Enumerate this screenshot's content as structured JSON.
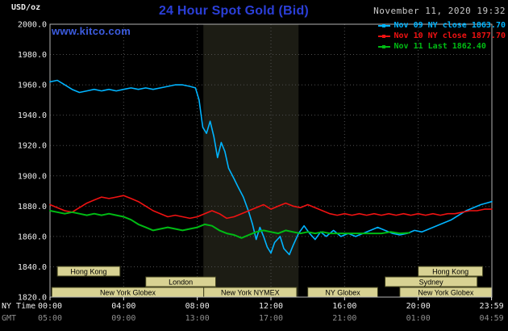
{
  "header": {
    "units_label": "USD/oz",
    "title": "24 Hour Spot Gold (Bid)",
    "datetime": "November 11, 2020 19:32",
    "watermark": "www.kitco.com"
  },
  "colors": {
    "title": "#2b3fd8",
    "watermark": "#3c5ce0",
    "datetime": "#c8c8c8",
    "background": "#000000",
    "plot_border": "#b5b5b5",
    "grid": "#4f4f4f",
    "band": "#1c1c14",
    "session_fill": "#d8d293",
    "session_stroke": "#44441f",
    "session_text": "#000000",
    "tick_primary": "#ededed",
    "tick_secondary": "#8f8f8f"
  },
  "legend": [
    {
      "id": "nov09",
      "label": "Nov 09 NY close 1863.70",
      "color": "#00b4ff"
    },
    {
      "id": "nov10",
      "label": "Nov 10 NY close 1877.70",
      "color": "#f01212"
    },
    {
      "id": "nov11",
      "label": "Nov 11 Last 1862.40",
      "color": "#00bb14"
    }
  ],
  "axes": {
    "ny_time_label": "NY Time",
    "gmt_label": "GMT",
    "x_tick_hours": [
      0,
      4,
      8,
      12,
      16,
      20,
      23.983
    ],
    "x_ticks_ny": [
      "00:00",
      "04:00",
      "08:00",
      "12:00",
      "16:00",
      "20:00",
      "23:59"
    ],
    "x_ticks_gmt": [
      "05:00",
      "09:00",
      "13:00",
      "17:00",
      "21:00",
      "01:00",
      "04:59"
    ],
    "y_ticks": [
      2000,
      1980,
      1960,
      1940,
      1920,
      1900,
      1880,
      1860,
      1840,
      1820
    ]
  },
  "sessions": [
    {
      "label": "Hong Kong",
      "row": 0,
      "start": 0.4,
      "end": 3.8
    },
    {
      "label": "Hong Kong",
      "row": 0,
      "start": 20.0,
      "end": 23.5
    },
    {
      "label": "London",
      "row": 1,
      "start": 5.2,
      "end": 9.0
    },
    {
      "label": "Sydney",
      "row": 1,
      "start": 18.2,
      "end": 23.2
    },
    {
      "label": "New York Globex",
      "row": 2,
      "start": 0.1,
      "end": 8.35
    },
    {
      "label": "New York NYMEX",
      "row": 2,
      "start": 8.35,
      "end": 13.4
    },
    {
      "label": "NY Globex",
      "row": 2,
      "start": 14.0,
      "end": 17.8
    },
    {
      "label": "New York Globex",
      "row": 2,
      "start": 19.0,
      "end": 24.0
    }
  ],
  "chart_data": {
    "type": "line",
    "title": "24 Hour Spot Gold (Bid)",
    "xlabel": "NY Time (hours)",
    "ylabel": "USD/oz",
    "xlim": [
      0,
      24
    ],
    "ylim": [
      1820,
      2000
    ],
    "grid": true,
    "legend_position": "top-right",
    "highlight_band_hours": [
      8.33,
      13.5
    ],
    "series": [
      {
        "id": "nov09",
        "name": "Nov 09",
        "close_label": "NY close 1863.70",
        "color": "#00b4ff",
        "width": 1.6,
        "points": [
          [
            0,
            1962
          ],
          [
            0.4,
            1963
          ],
          [
            0.8,
            1960
          ],
          [
            1.2,
            1957
          ],
          [
            1.6,
            1955
          ],
          [
            2,
            1956
          ],
          [
            2.4,
            1957
          ],
          [
            2.8,
            1956
          ],
          [
            3.2,
            1957
          ],
          [
            3.6,
            1956
          ],
          [
            4,
            1957
          ],
          [
            4.4,
            1958
          ],
          [
            4.8,
            1957
          ],
          [
            5.2,
            1958
          ],
          [
            5.6,
            1957
          ],
          [
            6,
            1958
          ],
          [
            6.4,
            1959
          ],
          [
            6.8,
            1960
          ],
          [
            7.2,
            1960
          ],
          [
            7.6,
            1959
          ],
          [
            7.9,
            1958
          ],
          [
            8.1,
            1950
          ],
          [
            8.3,
            1932
          ],
          [
            8.5,
            1928
          ],
          [
            8.7,
            1936
          ],
          [
            8.9,
            1926
          ],
          [
            9.1,
            1912
          ],
          [
            9.3,
            1922
          ],
          [
            9.5,
            1916
          ],
          [
            9.7,
            1905
          ],
          [
            10,
            1898
          ],
          [
            10.2,
            1893
          ],
          [
            10.5,
            1886
          ],
          [
            10.8,
            1876
          ],
          [
            11,
            1868
          ],
          [
            11.2,
            1858
          ],
          [
            11.4,
            1866
          ],
          [
            11.6,
            1860
          ],
          [
            11.8,
            1853
          ],
          [
            12,
            1849
          ],
          [
            12.2,
            1856
          ],
          [
            12.5,
            1860
          ],
          [
            12.7,
            1852
          ],
          [
            13,
            1848
          ],
          [
            13.2,
            1854
          ],
          [
            13.5,
            1862
          ],
          [
            13.8,
            1867
          ],
          [
            14.1,
            1862
          ],
          [
            14.4,
            1858
          ],
          [
            14.7,
            1863
          ],
          [
            15,
            1860
          ],
          [
            15.4,
            1864
          ],
          [
            15.8,
            1860
          ],
          [
            16.2,
            1862
          ],
          [
            16.6,
            1860
          ],
          [
            17,
            1862
          ],
          [
            17.4,
            1864
          ],
          [
            17.8,
            1866
          ],
          [
            18.2,
            1864
          ],
          [
            18.6,
            1862
          ],
          [
            19,
            1861
          ],
          [
            19.4,
            1862
          ],
          [
            19.8,
            1864
          ],
          [
            20.2,
            1863
          ],
          [
            20.6,
            1865
          ],
          [
            21,
            1867
          ],
          [
            21.4,
            1869
          ],
          [
            21.8,
            1871
          ],
          [
            22.2,
            1874
          ],
          [
            22.6,
            1877
          ],
          [
            23,
            1879
          ],
          [
            23.4,
            1881
          ],
          [
            23.7,
            1882
          ],
          [
            24,
            1883
          ]
        ]
      },
      {
        "id": "nov10",
        "name": "Nov 10",
        "close_label": "NY close 1877.70",
        "color": "#f01212",
        "width": 1.6,
        "points": [
          [
            0,
            1881
          ],
          [
            0.4,
            1879
          ],
          [
            0.8,
            1877
          ],
          [
            1.2,
            1876
          ],
          [
            1.6,
            1879
          ],
          [
            2,
            1882
          ],
          [
            2.4,
            1884
          ],
          [
            2.8,
            1886
          ],
          [
            3.2,
            1885
          ],
          [
            3.6,
            1886
          ],
          [
            4,
            1887
          ],
          [
            4.4,
            1885
          ],
          [
            4.8,
            1883
          ],
          [
            5.2,
            1880
          ],
          [
            5.6,
            1877
          ],
          [
            6,
            1875
          ],
          [
            6.4,
            1873
          ],
          [
            6.8,
            1874
          ],
          [
            7.2,
            1873
          ],
          [
            7.6,
            1872
          ],
          [
            8,
            1873
          ],
          [
            8.4,
            1875
          ],
          [
            8.8,
            1877
          ],
          [
            9.2,
            1875
          ],
          [
            9.6,
            1872
          ],
          [
            10,
            1873
          ],
          [
            10.4,
            1875
          ],
          [
            10.8,
            1877
          ],
          [
            11.2,
            1879
          ],
          [
            11.6,
            1881
          ],
          [
            12,
            1878
          ],
          [
            12.4,
            1880
          ],
          [
            12.8,
            1882
          ],
          [
            13.2,
            1880
          ],
          [
            13.6,
            1879
          ],
          [
            14,
            1881
          ],
          [
            14.4,
            1879
          ],
          [
            14.8,
            1877
          ],
          [
            15.2,
            1875
          ],
          [
            15.6,
            1874
          ],
          [
            16,
            1875
          ],
          [
            16.4,
            1874
          ],
          [
            16.8,
            1875
          ],
          [
            17.2,
            1874
          ],
          [
            17.6,
            1875
          ],
          [
            18,
            1874
          ],
          [
            18.4,
            1875
          ],
          [
            18.8,
            1874
          ],
          [
            19.2,
            1875
          ],
          [
            19.6,
            1874
          ],
          [
            20,
            1875
          ],
          [
            20.4,
            1874
          ],
          [
            20.8,
            1875
          ],
          [
            21.2,
            1874
          ],
          [
            21.6,
            1875
          ],
          [
            22,
            1875
          ],
          [
            22.4,
            1876
          ],
          [
            22.8,
            1877
          ],
          [
            23.2,
            1877
          ],
          [
            23.6,
            1878
          ],
          [
            24,
            1878
          ]
        ]
      },
      {
        "id": "nov11",
        "name": "Nov 11",
        "close_label": "Last 1862.40",
        "color": "#00bb14",
        "width": 2,
        "points": [
          [
            0,
            1877
          ],
          [
            0.4,
            1876
          ],
          [
            0.8,
            1875
          ],
          [
            1.2,
            1876
          ],
          [
            1.6,
            1875
          ],
          [
            2,
            1874
          ],
          [
            2.4,
            1875
          ],
          [
            2.8,
            1874
          ],
          [
            3.2,
            1875
          ],
          [
            3.6,
            1874
          ],
          [
            4,
            1873
          ],
          [
            4.4,
            1871
          ],
          [
            4.8,
            1868
          ],
          [
            5.2,
            1866
          ],
          [
            5.6,
            1864
          ],
          [
            6,
            1865
          ],
          [
            6.4,
            1866
          ],
          [
            6.8,
            1865
          ],
          [
            7.2,
            1864
          ],
          [
            7.6,
            1865
          ],
          [
            8,
            1866
          ],
          [
            8.4,
            1868
          ],
          [
            8.8,
            1867
          ],
          [
            9.2,
            1864
          ],
          [
            9.6,
            1862
          ],
          [
            10,
            1861
          ],
          [
            10.4,
            1859
          ],
          [
            10.8,
            1861
          ],
          [
            11.2,
            1863
          ],
          [
            11.6,
            1864
          ],
          [
            12,
            1863
          ],
          [
            12.4,
            1862
          ],
          [
            12.8,
            1864
          ],
          [
            13.2,
            1863
          ],
          [
            13.6,
            1862
          ],
          [
            14,
            1863
          ],
          [
            14.4,
            1862
          ],
          [
            14.8,
            1863
          ],
          [
            15.2,
            1862
          ],
          [
            15.6,
            1862
          ],
          [
            16,
            1862
          ],
          [
            16.5,
            1862
          ],
          [
            17,
            1862
          ],
          [
            17.5,
            1862
          ],
          [
            18,
            1862
          ],
          [
            18.5,
            1863
          ],
          [
            19,
            1862
          ],
          [
            19.53,
            1862.4
          ]
        ]
      }
    ]
  }
}
